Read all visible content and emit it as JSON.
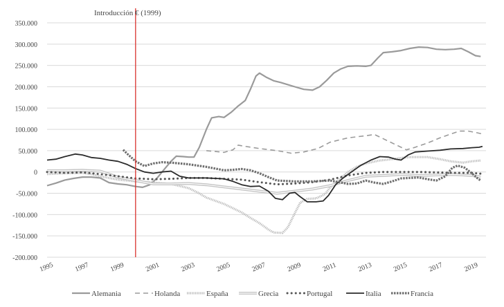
{
  "chart_data": {
    "type": "line",
    "title": "",
    "xlabel": "",
    "ylabel": "",
    "x_ticks": [
      "1995",
      "1997",
      "1999",
      "2001",
      "2003",
      "2005",
      "2007",
      "2009",
      "2011",
      "2013",
      "2015",
      "2017",
      "2019"
    ],
    "y_ticks": [
      "350.000",
      "300.000",
      "250.000",
      "200.000",
      "150.000",
      "100.000",
      "50.000",
      "0",
      "-50.000",
      "-100.000",
      "-150.000",
      "-200.000"
    ],
    "xlim": [
      1995,
      2019.8
    ],
    "ylim": [
      -200000,
      350000
    ],
    "grid": "horizontal",
    "legend_position": "bottom",
    "annotation": {
      "label": "Introducción € (1999)",
      "x": 2000.0,
      "color": "#d9302c"
    },
    "series": [
      {
        "name": "Alemania",
        "color": "#9a9a9a",
        "style": "solid",
        "points": [
          [
            1995.0,
            -32000
          ],
          [
            1995.5,
            -26000
          ],
          [
            1996.0,
            -19000
          ],
          [
            1996.5,
            -15000
          ],
          [
            1997.0,
            -12000
          ],
          [
            1997.5,
            -12000
          ],
          [
            1998.0,
            -14000
          ],
          [
            1998.5,
            -25000
          ],
          [
            1999.0,
            -28000
          ],
          [
            1999.5,
            -30000
          ],
          [
            2000.0,
            -34000
          ],
          [
            2000.4,
            -36000
          ],
          [
            2000.8,
            -30000
          ],
          [
            2001.2,
            -15000
          ],
          [
            2001.6,
            5000
          ],
          [
            2002.0,
            25000
          ],
          [
            2002.3,
            37000
          ],
          [
            2002.7,
            36000
          ],
          [
            2003.0,
            35000
          ],
          [
            2003.3,
            35000
          ],
          [
            2003.6,
            58000
          ],
          [
            2004.0,
            100000
          ],
          [
            2004.3,
            127000
          ],
          [
            2004.7,
            130000
          ],
          [
            2005.0,
            128000
          ],
          [
            2005.4,
            140000
          ],
          [
            2005.8,
            155000
          ],
          [
            2006.2,
            168000
          ],
          [
            2006.5,
            195000
          ],
          [
            2006.8,
            225000
          ],
          [
            2007.0,
            232000
          ],
          [
            2007.4,
            222000
          ],
          [
            2007.8,
            214000
          ],
          [
            2008.2,
            210000
          ],
          [
            2008.6,
            205000
          ],
          [
            2009.0,
            200000
          ],
          [
            2009.5,
            194000
          ],
          [
            2010.0,
            192000
          ],
          [
            2010.4,
            200000
          ],
          [
            2010.8,
            215000
          ],
          [
            2011.2,
            232000
          ],
          [
            2011.6,
            242000
          ],
          [
            2012.0,
            248000
          ],
          [
            2012.5,
            249000
          ],
          [
            2013.0,
            248000
          ],
          [
            2013.3,
            250000
          ],
          [
            2013.7,
            268000
          ],
          [
            2014.0,
            280000
          ],
          [
            2014.5,
            282000
          ],
          [
            2015.0,
            285000
          ],
          [
            2015.5,
            290000
          ],
          [
            2016.0,
            293000
          ],
          [
            2016.5,
            292000
          ],
          [
            2017.0,
            288000
          ],
          [
            2017.5,
            287000
          ],
          [
            2018.0,
            288000
          ],
          [
            2018.4,
            290000
          ],
          [
            2018.8,
            282000
          ],
          [
            2019.2,
            273000
          ],
          [
            2019.5,
            271000
          ]
        ]
      },
      {
        "name": "Holanda",
        "color": "#9a9a9a",
        "style": "dashed",
        "points": [
          [
            2004.0,
            50000
          ],
          [
            2004.5,
            48000
          ],
          [
            2005.0,
            46000
          ],
          [
            2005.5,
            52000
          ],
          [
            2005.8,
            63000
          ],
          [
            2006.2,
            60000
          ],
          [
            2007.0,
            55000
          ],
          [
            2008.0,
            50000
          ],
          [
            2008.8,
            44000
          ],
          [
            2009.5,
            47000
          ],
          [
            2010.3,
            55000
          ],
          [
            2011.0,
            70000
          ],
          [
            2012.0,
            80000
          ],
          [
            2013.0,
            85000
          ],
          [
            2013.5,
            88000
          ],
          [
            2014.0,
            78000
          ],
          [
            2014.8,
            62000
          ],
          [
            2015.3,
            52000
          ],
          [
            2015.8,
            58000
          ],
          [
            2016.5,
            68000
          ],
          [
            2017.2,
            80000
          ],
          [
            2017.8,
            89000
          ],
          [
            2018.3,
            96000
          ],
          [
            2018.8,
            96000
          ],
          [
            2019.3,
            92000
          ],
          [
            2019.7,
            88000
          ]
        ]
      },
      {
        "name": "España",
        "color": "#b9b9b9",
        "style": "zigzag",
        "points": [
          [
            1995.0,
            -5000
          ],
          [
            1996.0,
            -3000
          ],
          [
            1997.0,
            -2000
          ],
          [
            1997.5,
            -5000
          ],
          [
            1998.0,
            -10000
          ],
          [
            1999.0,
            -18000
          ],
          [
            2000.0,
            -22000
          ],
          [
            2001.0,
            -25000
          ],
          [
            2002.0,
            -28000
          ],
          [
            2003.0,
            -38000
          ],
          [
            2003.5,
            -48000
          ],
          [
            2004.0,
            -60000
          ],
          [
            2005.0,
            -75000
          ],
          [
            2005.5,
            -85000
          ],
          [
            2006.0,
            -95000
          ],
          [
            2006.5,
            -108000
          ],
          [
            2007.0,
            -120000
          ],
          [
            2007.5,
            -135000
          ],
          [
            2007.8,
            -142000
          ],
          [
            2008.3,
            -143000
          ],
          [
            2008.6,
            -130000
          ],
          [
            2008.9,
            -105000
          ],
          [
            2009.3,
            -72000
          ],
          [
            2009.7,
            -63000
          ],
          [
            2010.2,
            -62000
          ],
          [
            2010.7,
            -52000
          ],
          [
            2011.0,
            -36000
          ],
          [
            2011.5,
            -18000
          ],
          [
            2012.0,
            0
          ],
          [
            2012.5,
            12000
          ],
          [
            2013.0,
            20000
          ],
          [
            2013.8,
            27000
          ],
          [
            2014.5,
            30000
          ],
          [
            2015.0,
            33000
          ],
          [
            2015.5,
            35000
          ],
          [
            2016.5,
            35000
          ],
          [
            2017.2,
            30000
          ],
          [
            2017.8,
            25000
          ],
          [
            2018.5,
            22000
          ],
          [
            2019.0,
            25000
          ],
          [
            2019.5,
            27000
          ]
        ]
      },
      {
        "name": "Grecia",
        "color": "#c4c4c4",
        "style": "double",
        "points": [
          [
            1995.0,
            3000
          ],
          [
            1996.0,
            3000
          ],
          [
            1997.0,
            4000
          ],
          [
            1998.0,
            2000
          ],
          [
            1999.0,
            -12000
          ],
          [
            2000.0,
            -20000
          ],
          [
            2001.0,
            -28000
          ],
          [
            2002.0,
            -28000
          ],
          [
            2003.0,
            -27000
          ],
          [
            2004.0,
            -30000
          ],
          [
            2005.0,
            -35000
          ],
          [
            2006.0,
            -40000
          ],
          [
            2007.0,
            -45000
          ],
          [
            2008.0,
            -50000
          ],
          [
            2009.0,
            -45000
          ],
          [
            2010.0,
            -40000
          ],
          [
            2011.0,
            -32000
          ],
          [
            2012.0,
            -20000
          ],
          [
            2013.0,
            -10000
          ],
          [
            2014.0,
            -8000
          ],
          [
            2015.0,
            -6000
          ],
          [
            2016.0,
            -8000
          ],
          [
            2017.0,
            -7000
          ],
          [
            2018.0,
            -6000
          ],
          [
            2019.0,
            -8000
          ],
          [
            2019.5,
            -12000
          ]
        ]
      },
      {
        "name": "Portugal",
        "color": "#555555",
        "style": "dotted",
        "points": [
          [
            1995.0,
            0
          ],
          [
            1996.0,
            -2000
          ],
          [
            1997.0,
            -1000
          ],
          [
            1998.0,
            -5000
          ],
          [
            1999.0,
            -10000
          ],
          [
            2000.0,
            -15000
          ],
          [
            2001.0,
            -17000
          ],
          [
            2002.0,
            -16000
          ],
          [
            2003.0,
            -14000
          ],
          [
            2004.0,
            -14000
          ],
          [
            2005.0,
            -16000
          ],
          [
            2006.0,
            -18000
          ],
          [
            2007.0,
            -24000
          ],
          [
            2008.0,
            -29000
          ],
          [
            2009.0,
            -27000
          ],
          [
            2010.0,
            -24000
          ],
          [
            2011.0,
            -18000
          ],
          [
            2012.0,
            -8000
          ],
          [
            2013.0,
            -2000
          ],
          [
            2014.0,
            0
          ],
          [
            2015.0,
            0
          ],
          [
            2016.0,
            0
          ],
          [
            2017.0,
            -1000
          ],
          [
            2018.0,
            -2000
          ],
          [
            2019.0,
            -2000
          ],
          [
            2019.5,
            -4000
          ]
        ]
      },
      {
        "name": "Italia",
        "color": "#2a2a2a",
        "style": "solid",
        "points": [
          [
            1995.0,
            28000
          ],
          [
            1995.5,
            30000
          ],
          [
            1996.0,
            36000
          ],
          [
            1996.6,
            42000
          ],
          [
            1997.0,
            40000
          ],
          [
            1997.5,
            34000
          ],
          [
            1998.0,
            32000
          ],
          [
            1998.5,
            28000
          ],
          [
            1999.0,
            25000
          ],
          [
            1999.5,
            18000
          ],
          [
            2000.0,
            8000
          ],
          [
            2000.5,
            0
          ],
          [
            2001.0,
            -3000
          ],
          [
            2001.5,
            0
          ],
          [
            2002.0,
            2000
          ],
          [
            2002.5,
            -10000
          ],
          [
            2003.0,
            -14000
          ],
          [
            2004.0,
            -14000
          ],
          [
            2005.0,
            -16000
          ],
          [
            2005.5,
            -22000
          ],
          [
            2006.0,
            -30000
          ],
          [
            2006.5,
            -34000
          ],
          [
            2007.0,
            -33000
          ],
          [
            2007.5,
            -45000
          ],
          [
            2007.9,
            -62000
          ],
          [
            2008.3,
            -65000
          ],
          [
            2008.7,
            -50000
          ],
          [
            2009.0,
            -48000
          ],
          [
            2009.3,
            -58000
          ],
          [
            2009.7,
            -70000
          ],
          [
            2010.2,
            -70000
          ],
          [
            2010.6,
            -68000
          ],
          [
            2010.9,
            -55000
          ],
          [
            2011.3,
            -30000
          ],
          [
            2011.7,
            -15000
          ],
          [
            2012.2,
            0
          ],
          [
            2012.7,
            15000
          ],
          [
            2013.3,
            28000
          ],
          [
            2013.8,
            36000
          ],
          [
            2014.3,
            35000
          ],
          [
            2014.7,
            30000
          ],
          [
            2015.0,
            28000
          ],
          [
            2015.4,
            40000
          ],
          [
            2015.8,
            47000
          ],
          [
            2016.5,
            49000
          ],
          [
            2017.2,
            51000
          ],
          [
            2017.8,
            54000
          ],
          [
            2018.5,
            55000
          ],
          [
            2019.0,
            57000
          ],
          [
            2019.4,
            58000
          ],
          [
            2019.6,
            60000
          ]
        ]
      },
      {
        "name": "Francia",
        "color": "#6e6e6e",
        "style": "chain",
        "points": [
          [
            1999.3,
            52000
          ],
          [
            1999.6,
            40000
          ],
          [
            2000.0,
            25000
          ],
          [
            2000.5,
            14000
          ],
          [
            2001.0,
            20000
          ],
          [
            2001.5,
            23000
          ],
          [
            2002.0,
            22000
          ],
          [
            2002.5,
            20000
          ],
          [
            2003.0,
            18000
          ],
          [
            2003.5,
            15000
          ],
          [
            2004.0,
            12000
          ],
          [
            2004.5,
            8000
          ],
          [
            2005.0,
            4000
          ],
          [
            2005.5,
            5000
          ],
          [
            2006.0,
            7000
          ],
          [
            2006.5,
            4000
          ],
          [
            2007.0,
            -3000
          ],
          [
            2007.5,
            -12000
          ],
          [
            2008.0,
            -20000
          ],
          [
            2009.0,
            -22000
          ],
          [
            2010.0,
            -22000
          ],
          [
            2011.0,
            -20000
          ],
          [
            2012.0,
            -28000
          ],
          [
            2012.5,
            -27000
          ],
          [
            2013.0,
            -20000
          ],
          [
            2013.5,
            -25000
          ],
          [
            2014.0,
            -28000
          ],
          [
            2014.5,
            -22000
          ],
          [
            2015.0,
            -15000
          ],
          [
            2016.0,
            -13000
          ],
          [
            2016.5,
            -17000
          ],
          [
            2017.0,
            -20000
          ],
          [
            2017.5,
            -10000
          ],
          [
            2017.9,
            10000
          ],
          [
            2018.2,
            15000
          ],
          [
            2018.6,
            10000
          ],
          [
            2019.0,
            -3000
          ],
          [
            2019.3,
            -14000
          ],
          [
            2019.5,
            -20000
          ]
        ]
      }
    ]
  }
}
